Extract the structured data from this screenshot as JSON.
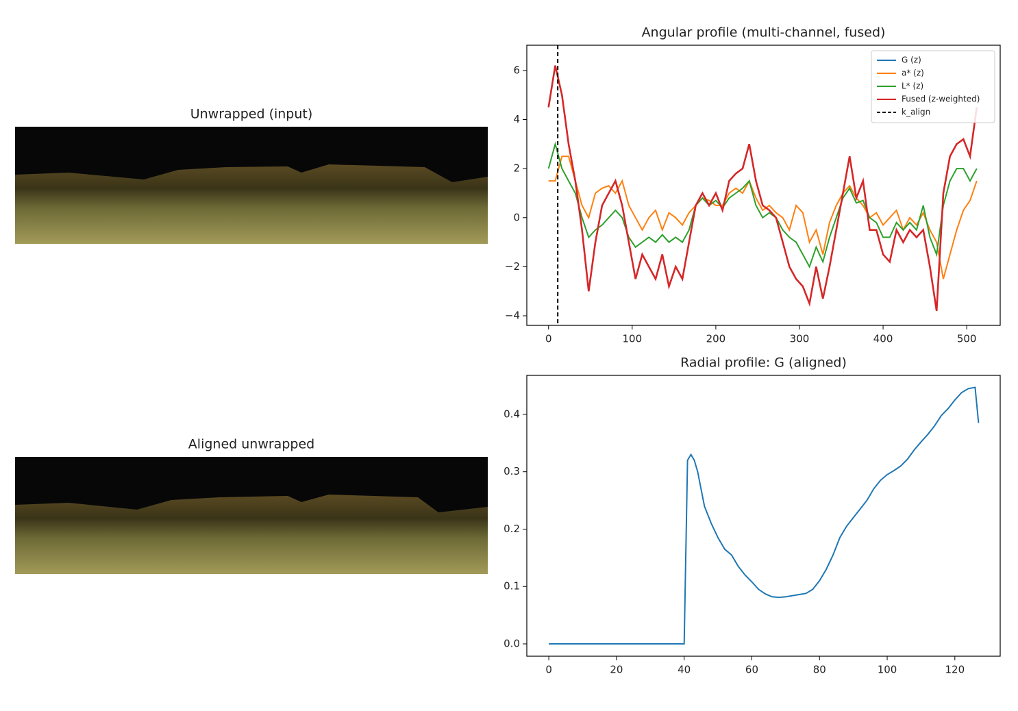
{
  "chart_data": [
    {
      "type": "image",
      "title": "Unwrapped (input)"
    },
    {
      "type": "image",
      "title": "Aligned unwrapped"
    },
    {
      "type": "line",
      "title": "Angular profile (multi-channel, fused)",
      "x": [
        0,
        8,
        16,
        24,
        32,
        40,
        48,
        56,
        64,
        72,
        80,
        88,
        96,
        104,
        112,
        120,
        128,
        136,
        144,
        152,
        160,
        168,
        176,
        184,
        192,
        200,
        208,
        216,
        224,
        232,
        240,
        248,
        256,
        264,
        272,
        280,
        288,
        296,
        304,
        312,
        320,
        328,
        336,
        344,
        352,
        360,
        368,
        376,
        384,
        392,
        400,
        408,
        416,
        424,
        432,
        440,
        448,
        456,
        464,
        472,
        480,
        488,
        496,
        504,
        512
      ],
      "series": [
        {
          "name": "G (z)",
          "color": "#1f77b4",
          "values": [
            4.5,
            6.2,
            5,
            3,
            1.5,
            -0.5,
            -3,
            -1,
            0.5,
            1,
            1.5,
            0.5,
            -1,
            -2.5,
            -1.5,
            -2,
            -2.5,
            -1.5,
            -2.8,
            -2,
            -2.5,
            -1,
            0.5,
            1,
            0.5,
            1,
            0.3,
            1.5,
            1.8,
            2,
            3,
            1.5,
            0.5,
            0.3,
            0,
            -1,
            -2,
            -2.5,
            -2.8,
            -3.5,
            -2,
            -3.3,
            -2,
            -0.5,
            1,
            2.5,
            0.8,
            1.5,
            -0.5,
            -0.5,
            -1.5,
            -1.8,
            -0.5,
            -1,
            -0.5,
            -0.8,
            -0.5,
            -2,
            -3.8,
            1,
            2.5,
            3,
            3.2,
            2.5,
            4.5
          ]
        },
        {
          "name": "a* (z)",
          "color": "#ff7f0e",
          "values": [
            1.5,
            1.5,
            2.5,
            2.5,
            1.5,
            0.5,
            0,
            1,
            1.2,
            1.3,
            1,
            1.5,
            0.5,
            0,
            -0.5,
            0,
            0.3,
            -0.5,
            0.2,
            0,
            -0.3,
            0.2,
            0.5,
            0.8,
            0.7,
            0.5,
            0.5,
            1,
            1.2,
            1,
            1.5,
            0.8,
            0.3,
            0.5,
            0.2,
            0,
            -0.5,
            0.5,
            0.2,
            -1,
            -0.5,
            -1.5,
            -0.2,
            0.5,
            1,
            1.3,
            0.8,
            0.5,
            0,
            0.2,
            -0.3,
            0,
            0.3,
            -0.5,
            0,
            -0.3,
            0.2,
            -0.5,
            -1,
            -2.5,
            -1.5,
            -0.5,
            0.3,
            0.7,
            1.5
          ]
        },
        {
          "name": "L* (z)",
          "color": "#2ca02c",
          "values": [
            2,
            3,
            2,
            1.5,
            1,
            0,
            -0.8,
            -0.5,
            -0.3,
            0,
            0.3,
            0,
            -0.8,
            -1.2,
            -1,
            -0.8,
            -1,
            -0.7,
            -1,
            -0.8,
            -1,
            -0.5,
            0.5,
            0.8,
            0.5,
            0.7,
            0.4,
            0.8,
            1,
            1.2,
            1.5,
            0.5,
            0,
            0.2,
            0,
            -0.5,
            -0.8,
            -1,
            -1.5,
            -2,
            -1.2,
            -1.8,
            -0.8,
            0,
            0.8,
            1.2,
            0.6,
            0.7,
            0,
            -0.2,
            -0.8,
            -0.8,
            -0.2,
            -0.5,
            -0.2,
            -0.5,
            0.5,
            -0.8,
            -1.5,
            0.5,
            1.5,
            2,
            2,
            1.5,
            2
          ]
        },
        {
          "name": "Fused (z-weighted)",
          "color": "#d62728",
          "values": [
            4.5,
            6.2,
            5,
            3,
            1.5,
            -0.5,
            -3,
            -1,
            0.5,
            1,
            1.5,
            0.5,
            -1,
            -2.5,
            -1.5,
            -2,
            -2.5,
            -1.5,
            -2.8,
            -2,
            -2.5,
            -1,
            0.5,
            1,
            0.5,
            1,
            0.3,
            1.5,
            1.8,
            2,
            3,
            1.5,
            0.5,
            0.3,
            0,
            -1,
            -2,
            -2.5,
            -2.8,
            -3.5,
            -2,
            -3.3,
            -2,
            -0.5,
            1,
            2.5,
            0.8,
            1.5,
            -0.5,
            -0.5,
            -1.5,
            -1.8,
            -0.5,
            -1,
            -0.5,
            -0.8,
            -0.5,
            -2,
            -3.8,
            1,
            2.5,
            3,
            3.2,
            2.5,
            4.5
          ]
        }
      ],
      "vlines": [
        {
          "name": "k_align",
          "x": 11,
          "color": "#000000"
        }
      ],
      "xlim": [
        -26,
        540
      ],
      "ylim": [
        -4.39,
        7.03
      ],
      "xticks": [
        0,
        100,
        200,
        300,
        400,
        500
      ],
      "yticks": [
        {
          "value": -4,
          "label": "−4"
        },
        {
          "value": -2,
          "label": "−2"
        },
        0,
        2,
        4,
        6
      ],
      "legend": "upper right"
    },
    {
      "type": "line",
      "title": "Radial profile: G (aligned)",
      "x": [
        0,
        40,
        41,
        42,
        43,
        44,
        46,
        48,
        50,
        52,
        54,
        56,
        58,
        60,
        62,
        64,
        66,
        68,
        70,
        72,
        74,
        76,
        78,
        80,
        82,
        84,
        86,
        88,
        90,
        92,
        94,
        96,
        98,
        100,
        102,
        104,
        106,
        108,
        110,
        112,
        114,
        116,
        118,
        120,
        122,
        124,
        126,
        127
      ],
      "series": [
        {
          "color": "#1f77b4",
          "values": [
            0,
            0,
            0.32,
            0.33,
            0.32,
            0.3,
            0.24,
            0.21,
            0.185,
            0.165,
            0.155,
            0.135,
            0.12,
            0.108,
            0.095,
            0.087,
            0.082,
            0.081,
            0.082,
            0.084,
            0.086,
            0.088,
            0.095,
            0.11,
            0.13,
            0.155,
            0.185,
            0.205,
            0.22,
            0.235,
            0.25,
            0.27,
            0.285,
            0.295,
            0.302,
            0.31,
            0.322,
            0.338,
            0.352,
            0.365,
            0.38,
            0.398,
            0.41,
            0.425,
            0.438,
            0.445,
            0.447,
            0.385
          ]
        }
      ],
      "xlim": [
        -6.5,
        133.4
      ],
      "ylim": [
        -0.0215,
        0.468
      ],
      "xticks": [
        0,
        20,
        40,
        60,
        80,
        100,
        120
      ],
      "yticks": [
        {
          "value": 0,
          "label": "0.0"
        },
        0.1,
        0.2,
        0.3,
        0.4
      ]
    }
  ]
}
